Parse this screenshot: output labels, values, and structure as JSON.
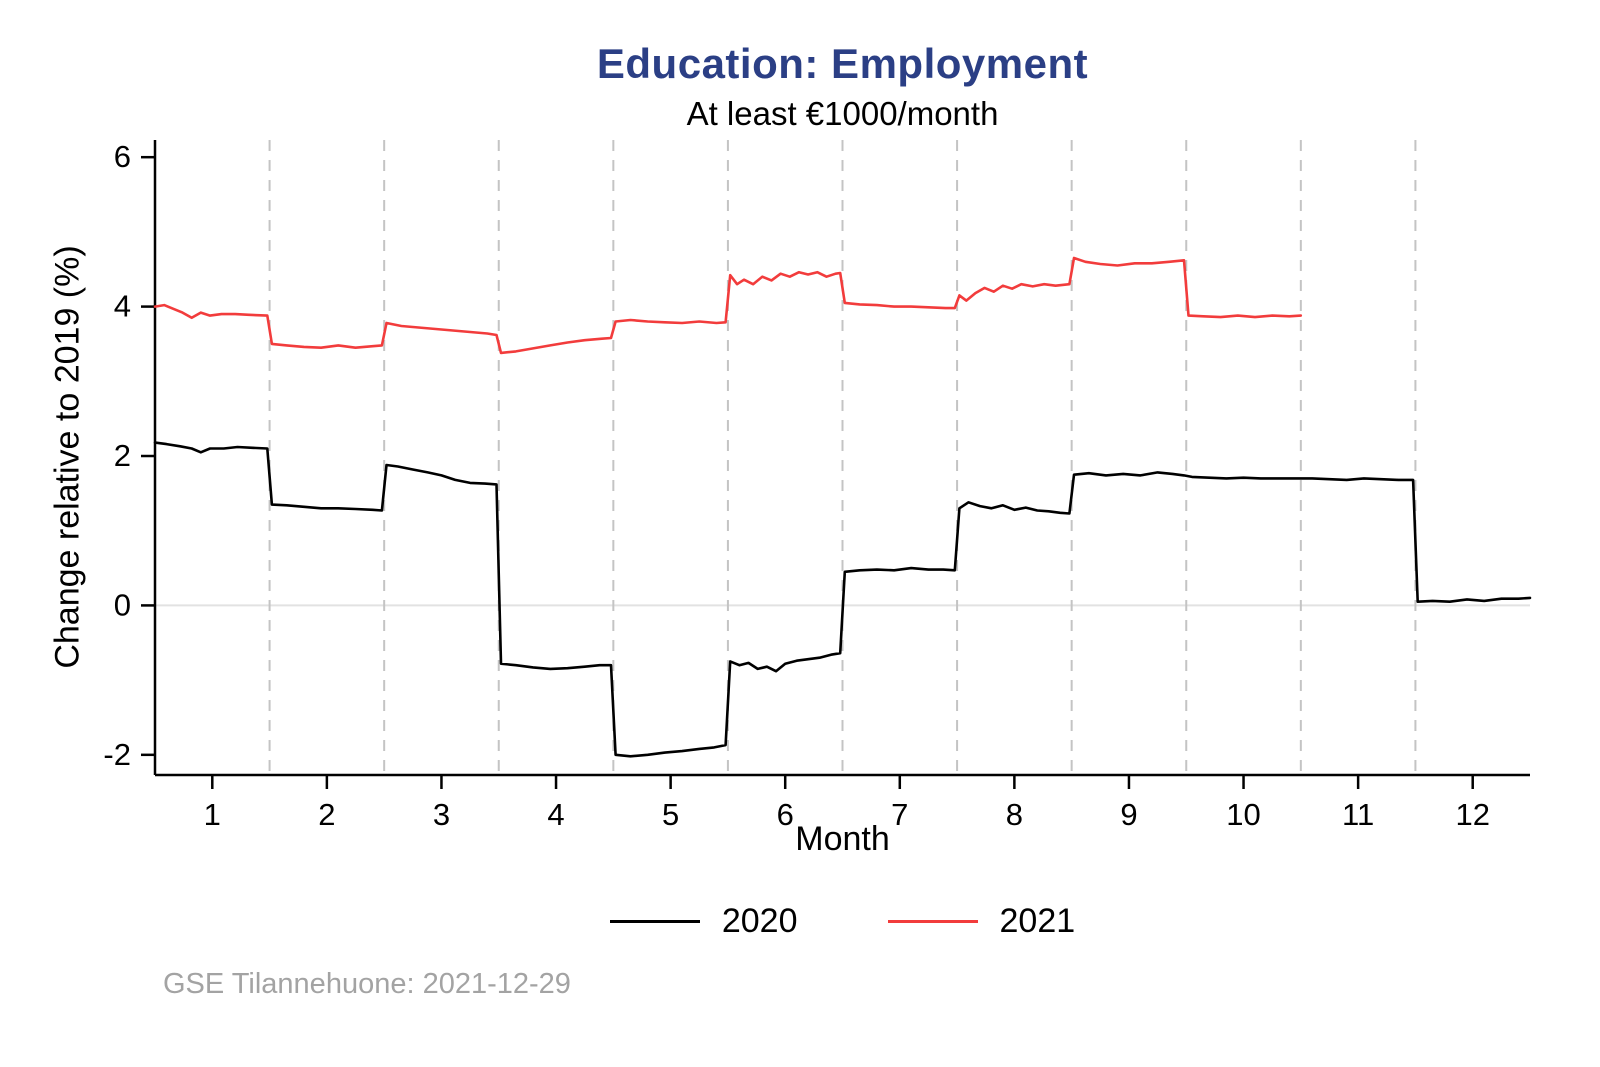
{
  "colors": {
    "title": "#2b3f85",
    "series_2020": "#000000",
    "series_2021": "#f23c3c",
    "gridline": "#c4c4c4",
    "zero_line": "#e2e2e2",
    "footer_text": "#a3a3a3"
  },
  "footer": "GSE Tilannehuone: 2021-12-29",
  "chart_data": {
    "type": "line",
    "title": "Education: Employment",
    "subtitle": "At least €1000/month",
    "xlabel": "Month",
    "ylabel": "Change relative to 2019 (%)",
    "xlim": [
      0.5,
      12.5
    ],
    "ylim": [
      -2.27,
      6.23
    ],
    "x_ticks": [
      1,
      2,
      3,
      4,
      5,
      6,
      7,
      8,
      9,
      10,
      11,
      12
    ],
    "y_ticks": [
      -2,
      0,
      2,
      4,
      6
    ],
    "gridlines_x": [
      1.5,
      2.5,
      3.5,
      4.5,
      5.5,
      6.5,
      7.5,
      8.5,
      9.5,
      10.5,
      11.5
    ],
    "zero_line": true,
    "grid": "vertical-dashed",
    "legend_position": "bottom",
    "series": [
      {
        "name": "2020",
        "color": "#000000",
        "points": [
          [
            0.5,
            2.18
          ],
          [
            0.6,
            2.16
          ],
          [
            0.72,
            2.13
          ],
          [
            0.82,
            2.1
          ],
          [
            0.9,
            2.05
          ],
          [
            0.98,
            2.1
          ],
          [
            1.1,
            2.1
          ],
          [
            1.22,
            2.12
          ],
          [
            1.35,
            2.11
          ],
          [
            1.48,
            2.1
          ],
          [
            1.52,
            1.35
          ],
          [
            1.65,
            1.34
          ],
          [
            1.8,
            1.32
          ],
          [
            1.95,
            1.3
          ],
          [
            2.1,
            1.3
          ],
          [
            2.25,
            1.29
          ],
          [
            2.4,
            1.28
          ],
          [
            2.48,
            1.27
          ],
          [
            2.52,
            1.88
          ],
          [
            2.62,
            1.86
          ],
          [
            2.75,
            1.82
          ],
          [
            2.88,
            1.78
          ],
          [
            3.0,
            1.74
          ],
          [
            3.12,
            1.68
          ],
          [
            3.25,
            1.64
          ],
          [
            3.38,
            1.63
          ],
          [
            3.48,
            1.62
          ],
          [
            3.52,
            -0.78
          ],
          [
            3.65,
            -0.8
          ],
          [
            3.8,
            -0.83
          ],
          [
            3.95,
            -0.85
          ],
          [
            4.1,
            -0.84
          ],
          [
            4.25,
            -0.82
          ],
          [
            4.38,
            -0.8
          ],
          [
            4.48,
            -0.8
          ],
          [
            4.52,
            -2.0
          ],
          [
            4.65,
            -2.02
          ],
          [
            4.8,
            -2.0
          ],
          [
            4.95,
            -1.97
          ],
          [
            5.1,
            -1.95
          ],
          [
            5.25,
            -1.92
          ],
          [
            5.38,
            -1.9
          ],
          [
            5.48,
            -1.87
          ],
          [
            5.52,
            -0.75
          ],
          [
            5.6,
            -0.8
          ],
          [
            5.68,
            -0.77
          ],
          [
            5.76,
            -0.85
          ],
          [
            5.84,
            -0.82
          ],
          [
            5.92,
            -0.88
          ],
          [
            6.0,
            -0.78
          ],
          [
            6.1,
            -0.74
          ],
          [
            6.2,
            -0.72
          ],
          [
            6.3,
            -0.7
          ],
          [
            6.4,
            -0.66
          ],
          [
            6.48,
            -0.64
          ],
          [
            6.52,
            0.45
          ],
          [
            6.65,
            0.47
          ],
          [
            6.8,
            0.48
          ],
          [
            6.95,
            0.47
          ],
          [
            7.1,
            0.5
          ],
          [
            7.25,
            0.48
          ],
          [
            7.38,
            0.48
          ],
          [
            7.48,
            0.47
          ],
          [
            7.52,
            1.3
          ],
          [
            7.6,
            1.38
          ],
          [
            7.7,
            1.33
          ],
          [
            7.8,
            1.3
          ],
          [
            7.9,
            1.34
          ],
          [
            8.0,
            1.28
          ],
          [
            8.1,
            1.31
          ],
          [
            8.2,
            1.27
          ],
          [
            8.3,
            1.26
          ],
          [
            8.4,
            1.24
          ],
          [
            8.48,
            1.23
          ],
          [
            8.52,
            1.75
          ],
          [
            8.65,
            1.77
          ],
          [
            8.8,
            1.74
          ],
          [
            8.95,
            1.76
          ],
          [
            9.1,
            1.74
          ],
          [
            9.25,
            1.78
          ],
          [
            9.38,
            1.76
          ],
          [
            9.48,
            1.74
          ],
          [
            9.55,
            1.72
          ],
          [
            9.7,
            1.71
          ],
          [
            9.85,
            1.7
          ],
          [
            10.0,
            1.71
          ],
          [
            10.15,
            1.7
          ],
          [
            10.3,
            1.7
          ],
          [
            10.48,
            1.7
          ],
          [
            10.6,
            1.7
          ],
          [
            10.75,
            1.69
          ],
          [
            10.9,
            1.68
          ],
          [
            11.05,
            1.7
          ],
          [
            11.2,
            1.69
          ],
          [
            11.35,
            1.68
          ],
          [
            11.48,
            1.68
          ],
          [
            11.52,
            0.05
          ],
          [
            11.65,
            0.06
          ],
          [
            11.8,
            0.05
          ],
          [
            11.95,
            0.08
          ],
          [
            12.1,
            0.06
          ],
          [
            12.25,
            0.09
          ],
          [
            12.4,
            0.09
          ],
          [
            12.5,
            0.1
          ]
        ]
      },
      {
        "name": "2021",
        "color": "#f23c3c",
        "points": [
          [
            0.5,
            4.0
          ],
          [
            0.58,
            4.02
          ],
          [
            0.66,
            3.97
          ],
          [
            0.74,
            3.92
          ],
          [
            0.82,
            3.85
          ],
          [
            0.9,
            3.92
          ],
          [
            0.98,
            3.88
          ],
          [
            1.08,
            3.9
          ],
          [
            1.2,
            3.9
          ],
          [
            1.32,
            3.89
          ],
          [
            1.48,
            3.88
          ],
          [
            1.52,
            3.5
          ],
          [
            1.65,
            3.48
          ],
          [
            1.8,
            3.46
          ],
          [
            1.95,
            3.45
          ],
          [
            2.1,
            3.48
          ],
          [
            2.25,
            3.45
          ],
          [
            2.4,
            3.47
          ],
          [
            2.48,
            3.48
          ],
          [
            2.52,
            3.78
          ],
          [
            2.65,
            3.74
          ],
          [
            2.8,
            3.72
          ],
          [
            2.95,
            3.7
          ],
          [
            3.1,
            3.68
          ],
          [
            3.25,
            3.66
          ],
          [
            3.4,
            3.64
          ],
          [
            3.48,
            3.62
          ],
          [
            3.52,
            3.38
          ],
          [
            3.65,
            3.4
          ],
          [
            3.8,
            3.44
          ],
          [
            3.95,
            3.48
          ],
          [
            4.1,
            3.52
          ],
          [
            4.25,
            3.55
          ],
          [
            4.4,
            3.57
          ],
          [
            4.48,
            3.58
          ],
          [
            4.52,
            3.8
          ],
          [
            4.65,
            3.82
          ],
          [
            4.8,
            3.8
          ],
          [
            4.95,
            3.79
          ],
          [
            5.1,
            3.78
          ],
          [
            5.25,
            3.8
          ],
          [
            5.4,
            3.78
          ],
          [
            5.48,
            3.79
          ],
          [
            5.52,
            4.42
          ],
          [
            5.58,
            4.3
          ],
          [
            5.64,
            4.36
          ],
          [
            5.72,
            4.3
          ],
          [
            5.8,
            4.4
          ],
          [
            5.88,
            4.35
          ],
          [
            5.96,
            4.44
          ],
          [
            6.04,
            4.4
          ],
          [
            6.12,
            4.46
          ],
          [
            6.2,
            4.43
          ],
          [
            6.28,
            4.46
          ],
          [
            6.36,
            4.4
          ],
          [
            6.44,
            4.44
          ],
          [
            6.48,
            4.45
          ],
          [
            6.52,
            4.05
          ],
          [
            6.65,
            4.03
          ],
          [
            6.8,
            4.02
          ],
          [
            6.95,
            4.0
          ],
          [
            7.1,
            4.0
          ],
          [
            7.25,
            3.99
          ],
          [
            7.4,
            3.98
          ],
          [
            7.48,
            3.98
          ],
          [
            7.52,
            4.15
          ],
          [
            7.58,
            4.08
          ],
          [
            7.66,
            4.18
          ],
          [
            7.74,
            4.25
          ],
          [
            7.82,
            4.2
          ],
          [
            7.9,
            4.28
          ],
          [
            7.98,
            4.24
          ],
          [
            8.06,
            4.3
          ],
          [
            8.16,
            4.27
          ],
          [
            8.26,
            4.3
          ],
          [
            8.36,
            4.28
          ],
          [
            8.48,
            4.3
          ],
          [
            8.52,
            4.65
          ],
          [
            8.62,
            4.6
          ],
          [
            8.75,
            4.57
          ],
          [
            8.9,
            4.55
          ],
          [
            9.05,
            4.58
          ],
          [
            9.2,
            4.58
          ],
          [
            9.35,
            4.6
          ],
          [
            9.48,
            4.62
          ],
          [
            9.52,
            3.88
          ],
          [
            9.65,
            3.87
          ],
          [
            9.8,
            3.86
          ],
          [
            9.95,
            3.88
          ],
          [
            10.1,
            3.86
          ],
          [
            10.25,
            3.88
          ],
          [
            10.4,
            3.87
          ],
          [
            10.5,
            3.88
          ]
        ]
      }
    ]
  }
}
